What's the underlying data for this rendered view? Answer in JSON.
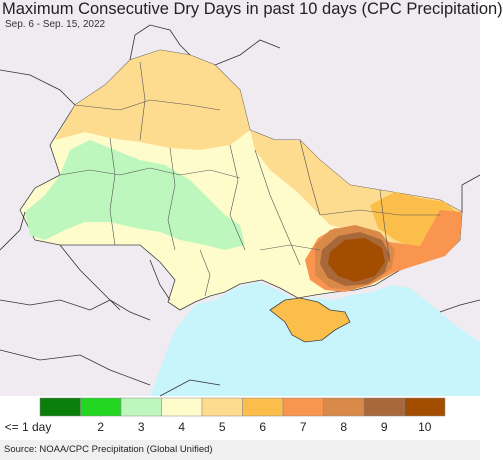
{
  "title": "Maximum Consecutive Dry Days in past 10 days (CPC Precipitation)",
  "subtitle": "Sep. 6 - Sep. 15, 2022",
  "source": "Source: NOAA/CPC Precipitation (Global Unified)",
  "legend": {
    "labels": [
      "<= 1 day",
      "2",
      "3",
      "4",
      "5",
      "6",
      "7",
      "8",
      "9",
      "10"
    ],
    "colors": [
      "#0b7e0b",
      "#22d622",
      "#bef7be",
      "#fffccc",
      "#fddb8f",
      "#fcbe4a",
      "#fa9550",
      "#d98a48",
      "#a8683a",
      "#a34d00"
    ]
  },
  "map_colors": {
    "land_bg": "#efebf0",
    "sea": "#c7f5fb",
    "border": "#333333"
  }
}
